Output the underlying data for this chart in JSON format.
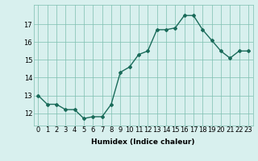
{
  "x": [
    0,
    1,
    2,
    3,
    4,
    5,
    6,
    7,
    8,
    9,
    10,
    11,
    12,
    13,
    14,
    15,
    16,
    17,
    18,
    19,
    20,
    21,
    22,
    23
  ],
  "y": [
    13.0,
    12.5,
    12.5,
    12.2,
    12.2,
    11.7,
    11.8,
    11.8,
    12.5,
    14.3,
    14.6,
    15.3,
    15.5,
    16.7,
    16.7,
    16.8,
    17.5,
    17.5,
    16.7,
    16.1,
    15.5,
    15.1,
    15.5,
    15.5
  ],
  "line_color": "#1a6b5a",
  "bg_color": "#d8f0ee",
  "grid_color": "#7dbfb0",
  "xlabel": "Humidex (Indice chaleur)",
  "xlabel_fontsize": 6.5,
  "xtick_labels": [
    "0",
    "1",
    "2",
    "3",
    "4",
    "5",
    "6",
    "7",
    "8",
    "9",
    "10",
    "11",
    "12",
    "13",
    "14",
    "15",
    "16",
    "17",
    "18",
    "19",
    "20",
    "21",
    "22",
    "23"
  ],
  "ytick_labels": [
    "12",
    "13",
    "14",
    "15",
    "16",
    "17"
  ],
  "yticks": [
    12,
    13,
    14,
    15,
    16,
    17
  ],
  "ylim": [
    11.3,
    18.1
  ],
  "xlim": [
    -0.5,
    23.5
  ],
  "marker": "D",
  "markersize": 2.0,
  "linewidth": 1.0,
  "tick_fontsize": 6.0
}
